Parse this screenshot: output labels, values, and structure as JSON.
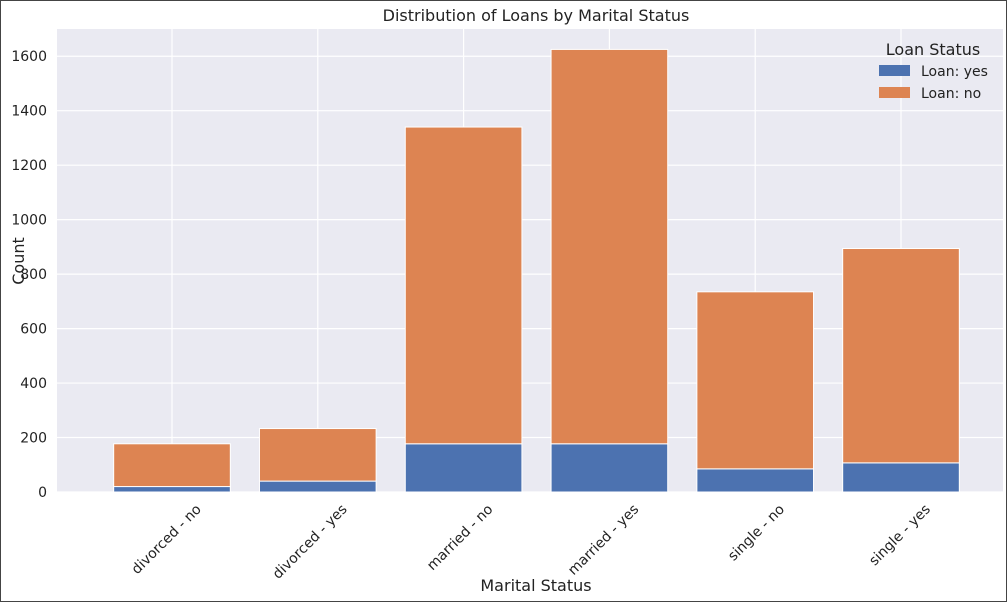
{
  "chart_data": {
    "type": "bar",
    "stacked": true,
    "title": "Distribution of Loans by Marital Status",
    "xlabel": "Marital Status",
    "ylabel": "Count",
    "categories": [
      "divorced - no",
      "divorced - yes",
      "married - no",
      "married - yes",
      "single - no",
      "single - yes"
    ],
    "series": [
      {
        "name": "Loan: yes",
        "color": "#4c72b0",
        "values": [
          20,
          40,
          177,
          177,
          85,
          107
        ]
      },
      {
        "name": "Loan: no",
        "color": "#dd8452",
        "values": [
          157,
          193,
          1163,
          1448,
          650,
          787
        ]
      }
    ],
    "ylim": [
      0,
      1700
    ],
    "yticks": [
      0,
      200,
      400,
      600,
      800,
      1000,
      1200,
      1400,
      1600
    ],
    "grid": true,
    "legend": {
      "title": "Loan Status",
      "position": "top-right"
    },
    "plot_background": "#eaeaf2",
    "grid_color": "#ffffff"
  }
}
